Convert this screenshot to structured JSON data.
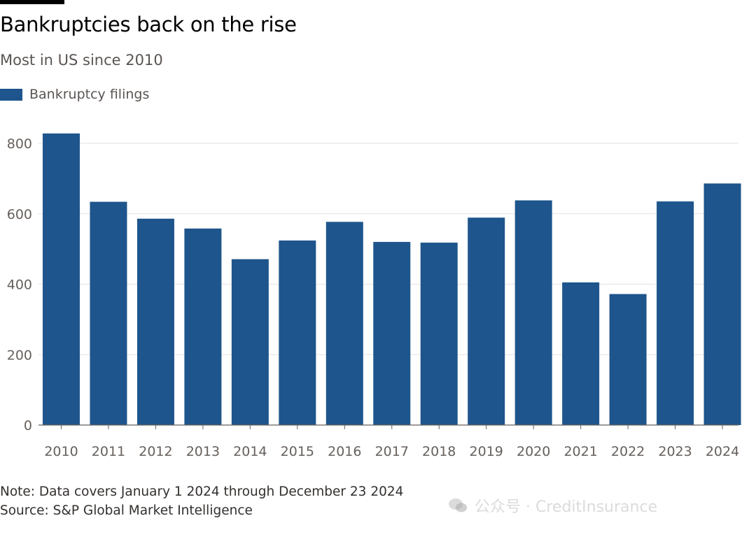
{
  "header": {
    "title": "Bankruptcies back on the rise",
    "subtitle": "Most in US since 2010"
  },
  "legend": {
    "label": "Bankruptcy filings",
    "color": "#1e558c"
  },
  "chart_data": {
    "type": "bar",
    "categories": [
      "2010",
      "2011",
      "2012",
      "2013",
      "2014",
      "2015",
      "2016",
      "2017",
      "2018",
      "2019",
      "2020",
      "2021",
      "2022",
      "2023",
      "2024"
    ],
    "series": [
      {
        "name": "Bankruptcy filings",
        "values": [
          828,
          634,
          586,
          558,
          471,
          524,
          577,
          520,
          518,
          589,
          638,
          405,
          372,
          635,
          686
        ]
      }
    ],
    "title": "Bankruptcies back on the rise",
    "subtitle": "Most in US since 2010",
    "ylim": [
      0,
      800
    ],
    "yticks": [
      0,
      200,
      400,
      600,
      800
    ],
    "grid": true,
    "legend_position": "top-left",
    "bar_color": "#1e558c"
  },
  "footer": {
    "note": "Note: Data covers January 1 2024 through December 23 2024",
    "source": "Source: S&P Global Market Intelligence"
  },
  "watermark": {
    "text": "公众号 · CreditInsurance"
  }
}
